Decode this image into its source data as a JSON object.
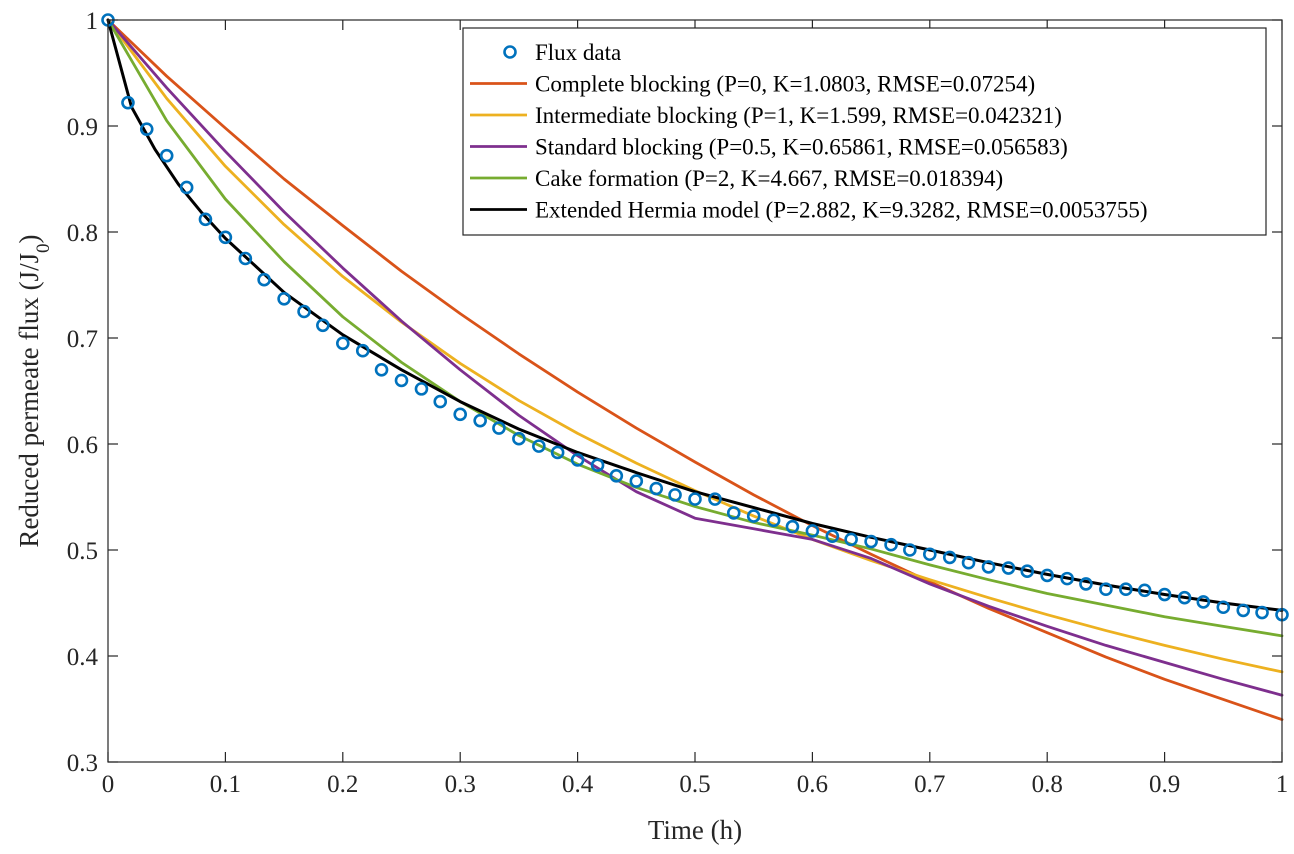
{
  "chart_data": {
    "type": "line",
    "xlabel": "Time (h)",
    "ylabel": "Reduced permeate flux (J/J",
    "ylabel_subscript": "0",
    "ylabel_suffix": ")",
    "xlim": [
      0,
      1
    ],
    "ylim": [
      0.3,
      1
    ],
    "xticks": [
      0,
      0.1,
      0.2,
      0.3,
      0.4,
      0.5,
      0.6,
      0.7,
      0.8,
      0.9,
      1
    ],
    "xtick_labels": [
      "0",
      "0.1",
      "0.2",
      "0.3",
      "0.4",
      "0.5",
      "0.6",
      "0.7",
      "0.8",
      "0.9",
      "1"
    ],
    "yticks": [
      0.3,
      0.4,
      0.5,
      0.6,
      0.7,
      0.8,
      0.9,
      1
    ],
    "ytick_labels": [
      "0.3",
      "0.4",
      "0.5",
      "0.6",
      "0.7",
      "0.8",
      "0.9",
      "1"
    ],
    "grid": false,
    "legend_position": "top-right",
    "scatter_series": {
      "name": "Flux data",
      "color": "#0072BD",
      "x": [
        0.0,
        0.017,
        0.033,
        0.05,
        0.067,
        0.083,
        0.1,
        0.117,
        0.133,
        0.15,
        0.167,
        0.183,
        0.2,
        0.217,
        0.233,
        0.25,
        0.267,
        0.283,
        0.3,
        0.317,
        0.333,
        0.35,
        0.367,
        0.383,
        0.4,
        0.417,
        0.433,
        0.45,
        0.467,
        0.483,
        0.5,
        0.517,
        0.533,
        0.55,
        0.567,
        0.583,
        0.6,
        0.617,
        0.633,
        0.65,
        0.667,
        0.683,
        0.7,
        0.717,
        0.733,
        0.75,
        0.767,
        0.783,
        0.8,
        0.817,
        0.833,
        0.85,
        0.867,
        0.883,
        0.9,
        0.917,
        0.933,
        0.95,
        0.967,
        0.983,
        1.0
      ],
      "y": [
        1.0,
        0.922,
        0.897,
        0.872,
        0.842,
        0.812,
        0.795,
        0.775,
        0.755,
        0.737,
        0.725,
        0.712,
        0.695,
        0.688,
        0.67,
        0.66,
        0.652,
        0.64,
        0.628,
        0.622,
        0.615,
        0.605,
        0.598,
        0.592,
        0.585,
        0.58,
        0.57,
        0.565,
        0.558,
        0.552,
        0.548,
        0.548,
        0.535,
        0.532,
        0.528,
        0.522,
        0.518,
        0.513,
        0.51,
        0.508,
        0.505,
        0.5,
        0.496,
        0.493,
        0.488,
        0.484,
        0.483,
        0.48,
        0.476,
        0.473,
        0.468,
        0.463,
        0.463,
        0.462,
        0.458,
        0.455,
        0.451,
        0.446,
        0.443,
        0.441,
        0.439
      ]
    },
    "series": [
      {
        "name": "Complete blocking (P=0, K=1.0803, RMSE=0.07254)",
        "color": "#D95319",
        "x": [
          0,
          0.05,
          0.1,
          0.15,
          0.2,
          0.25,
          0.3,
          0.35,
          0.4,
          0.45,
          0.5,
          0.55,
          0.6,
          0.65,
          0.7,
          0.75,
          0.8,
          0.85,
          0.9,
          0.95,
          1.0
        ],
        "y": [
          1.0,
          0.947,
          0.898,
          0.85,
          0.806,
          0.763,
          0.723,
          0.685,
          0.649,
          0.615,
          0.583,
          0.552,
          0.523,
          0.496,
          0.47,
          0.445,
          0.422,
          0.399,
          0.378,
          0.359,
          0.34
        ]
      },
      {
        "name": "Intermediate blocking (P=1, K=1.599, RMSE=0.042321)",
        "color": "#EDB120",
        "x": [
          0,
          0.05,
          0.1,
          0.15,
          0.2,
          0.25,
          0.3,
          0.35,
          0.4,
          0.45,
          0.5,
          0.55,
          0.6,
          0.65,
          0.7,
          0.75,
          0.8,
          0.85,
          0.9,
          0.95,
          1.0
        ],
        "y": [
          1.0,
          0.926,
          0.862,
          0.807,
          0.758,
          0.715,
          0.676,
          0.641,
          0.61,
          0.582,
          0.556,
          0.532,
          0.51,
          0.49,
          0.472,
          0.455,
          0.439,
          0.424,
          0.41,
          0.397,
          0.385
        ]
      },
      {
        "name": "Standard blocking (P=0.5, K=0.65861, RMSE=0.056583)",
        "color": "#7E2F8E",
        "x": [
          0,
          0.05,
          0.1,
          0.15,
          0.2,
          0.25,
          0.3,
          0.35,
          0.4,
          0.45,
          0.5,
          0.55,
          0.6,
          0.65,
          0.7,
          0.75,
          0.8,
          0.85,
          0.9,
          0.95,
          1.0
        ],
        "y": [
          1.0,
          0.936,
          0.876,
          0.819,
          0.766,
          0.716,
          0.67,
          0.627,
          0.589,
          0.555,
          0.53,
          0.52,
          0.51,
          0.492,
          0.468,
          0.447,
          0.428,
          0.41,
          0.394,
          0.378,
          0.363
        ]
      },
      {
        "name": "Cake formation (P=2, K=4.667, RMSE=0.018394)",
        "color": "#77AC30",
        "x": [
          0,
          0.05,
          0.1,
          0.15,
          0.2,
          0.25,
          0.3,
          0.35,
          0.4,
          0.45,
          0.5,
          0.55,
          0.6,
          0.65,
          0.7,
          0.75,
          0.8,
          0.85,
          0.9,
          0.95,
          1.0
        ],
        "y": [
          1.0,
          0.905,
          0.831,
          0.772,
          0.72,
          0.677,
          0.64,
          0.608,
          0.581,
          0.559,
          0.541,
          0.526,
          0.514,
          0.501,
          0.486,
          0.472,
          0.459,
          0.448,
          0.437,
          0.428,
          0.419
        ]
      },
      {
        "name": "Extended Hermia model (P=2.882, K=9.3282, RMSE=0.0053755)",
        "color": "#000000",
        "x": [
          0,
          0.02,
          0.04,
          0.06,
          0.08,
          0.1,
          0.15,
          0.2,
          0.25,
          0.3,
          0.35,
          0.4,
          0.45,
          0.5,
          0.55,
          0.6,
          0.65,
          0.7,
          0.75,
          0.8,
          0.85,
          0.9,
          0.95,
          1.0
        ],
        "y": [
          1.0,
          0.918,
          0.878,
          0.845,
          0.818,
          0.794,
          0.743,
          0.703,
          0.67,
          0.64,
          0.614,
          0.592,
          0.573,
          0.555,
          0.54,
          0.525,
          0.512,
          0.5,
          0.488,
          0.477,
          0.467,
          0.458,
          0.45,
          0.443
        ]
      }
    ]
  }
}
